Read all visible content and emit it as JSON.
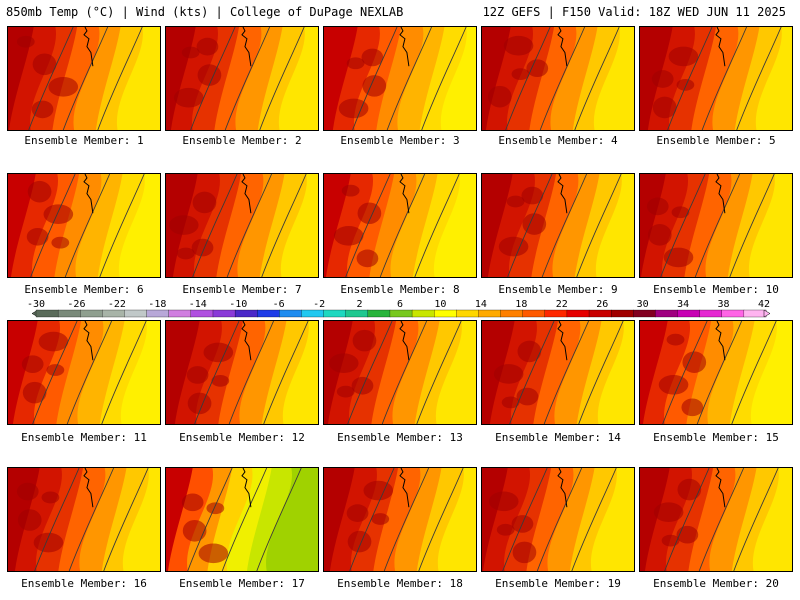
{
  "header": {
    "left": "850mb Temp (°C) | Wind (kts) | College of DuPage NEXLAB",
    "right": "12Z GEFS | F150 Valid: 18Z WED JUN 11 2025"
  },
  "members": [
    "Ensemble Member: 1",
    "Ensemble Member: 2",
    "Ensemble Member: 3",
    "Ensemble Member: 4",
    "Ensemble Member: 5",
    "Ensemble Member: 6",
    "Ensemble Member: 7",
    "Ensemble Member: 8",
    "Ensemble Member: 9",
    "Ensemble Member: 10",
    "Ensemble Member: 11",
    "Ensemble Member: 12",
    "Ensemble Member: 13",
    "Ensemble Member: 14",
    "Ensemble Member: 15",
    "Ensemble Member: 16",
    "Ensemble Member: 17",
    "Ensemble Member: 18",
    "Ensemble Member: 19",
    "Ensemble Member: 20"
  ],
  "colorbar": {
    "labels": [
      "-30",
      "-26",
      "-22",
      "-18",
      "-14",
      "-10",
      "-6",
      "-2",
      "2",
      "6",
      "10",
      "14",
      "18",
      "22",
      "26",
      "30",
      "34",
      "38",
      "42"
    ],
    "colors": [
      "#5a6b5a",
      "#7a8a7a",
      "#8f9f8f",
      "#a8b4a8",
      "#c0c8c8",
      "#b8a8d8",
      "#d07ee0",
      "#b050e0",
      "#8a3ad8",
      "#4a28c8",
      "#1e3ce8",
      "#1e8cf0",
      "#20c8f0",
      "#1ed8c0",
      "#1ec890",
      "#28b43c",
      "#78c81e",
      "#c8e600",
      "#ffff00",
      "#ffd700",
      "#ffaa00",
      "#ff8000",
      "#ff5a00",
      "#ff2800",
      "#e60000",
      "#c80000",
      "#a00000",
      "#820020",
      "#a00080",
      "#c800b4",
      "#e628d2",
      "#ff64e6",
      "#ffb4f0"
    ]
  },
  "members_style": {
    "1": "hot",
    "2": "hot",
    "3": "warm",
    "4": "hot",
    "5": "hot",
    "6": "warm",
    "7": "hot",
    "8": "warm",
    "9": "hot",
    "10": "hot",
    "11": "warm",
    "12": "hot",
    "13": "hot",
    "14": "hot",
    "15": "warm",
    "16": "hot",
    "17": "mild",
    "18": "hot",
    "19": "hot",
    "20": "hot"
  }
}
